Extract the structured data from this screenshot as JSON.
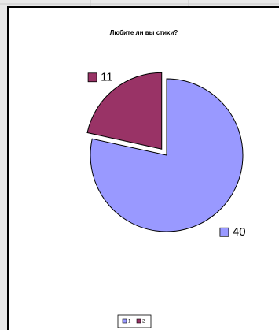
{
  "chart_data": {
    "type": "pie",
    "title": "Любите ли вы стихи?",
    "categories": [
      "1",
      "2"
    ],
    "values": [
      40,
      11
    ],
    "colors": [
      "#9999ff",
      "#993366"
    ],
    "exploded": [
      false,
      true
    ],
    "legend": "bottom"
  }
}
